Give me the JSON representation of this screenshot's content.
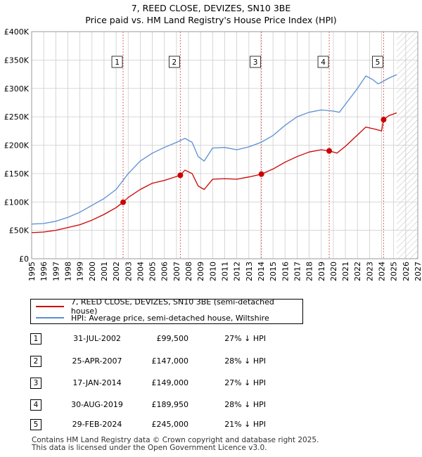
{
  "header": {
    "title_line1": "7, REED CLOSE, DEVIZES, SN10 3BE",
    "title_line2": "Price paid vs. HM Land Registry's House Price Index (HPI)"
  },
  "colors": {
    "property_line": "#cc0000",
    "hpi_line": "#5b8fd1",
    "grid": "#cccccc",
    "event_line": "#e06666",
    "hatch": "#bbbbbb"
  },
  "chart_data": {
    "type": "line",
    "title": "7, REED CLOSE, DEVIZES, SN10 3BE — Price paid vs. HM Land Registry's House Price Index (HPI)",
    "xlim": [
      1995,
      2027
    ],
    "ylim": [
      0,
      400000
    ],
    "x_ticks": [
      1995,
      1996,
      1997,
      1998,
      1999,
      2000,
      2001,
      2002,
      2003,
      2004,
      2005,
      2006,
      2007,
      2008,
      2009,
      2010,
      2011,
      2012,
      2013,
      2014,
      2015,
      2016,
      2017,
      2018,
      2019,
      2020,
      2021,
      2022,
      2023,
      2024,
      2025,
      2026,
      2027
    ],
    "y_ticks": [
      {
        "value": 0,
        "label": "£0"
      },
      {
        "value": 50000,
        "label": "£50K"
      },
      {
        "value": 100000,
        "label": "£100K"
      },
      {
        "value": 150000,
        "label": "£150K"
      },
      {
        "value": 200000,
        "label": "£200K"
      },
      {
        "value": 250000,
        "label": "£250K"
      },
      {
        "value": 300000,
        "label": "£300K"
      },
      {
        "value": 350000,
        "label": "£350K"
      },
      {
        "value": 400000,
        "label": "£400K"
      }
    ],
    "data_end": 2025.25,
    "series": [
      {
        "name": "7, REED CLOSE, DEVIZES, SN10 3BE (semi-detached house)",
        "x": [
          1995,
          1996,
          1997,
          1998,
          1999,
          2000,
          2001,
          2002,
          2002.58,
          2003,
          2004,
          2005,
          2006,
          2007.32,
          2007.7,
          2008.3,
          2008.8,
          2009.3,
          2010,
          2011,
          2012,
          2013,
          2014.04,
          2015,
          2016,
          2017,
          2018,
          2019,
          2019.66,
          2020.3,
          2021,
          2022,
          2022.7,
          2023.5,
          2024.0,
          2024.17,
          2024.6,
          2025.25
        ],
        "values": [
          46000,
          47000,
          50000,
          55000,
          60000,
          68000,
          78000,
          90000,
          99500,
          108000,
          122000,
          133000,
          138000,
          147000,
          156000,
          150000,
          128000,
          122000,
          140000,
          141000,
          140000,
          144000,
          149000,
          158000,
          170000,
          180000,
          188000,
          192000,
          189950,
          186000,
          198000,
          218000,
          232000,
          228000,
          225000,
          245000,
          252000,
          257000
        ]
      },
      {
        "name": "HPI: Average price, semi-detached house, Wiltshire",
        "x": [
          1995,
          1996,
          1997,
          1998,
          1999,
          2000,
          2001,
          2002,
          2003,
          2004,
          2005,
          2006,
          2007,
          2007.7,
          2008.3,
          2008.8,
          2009.3,
          2010,
          2011,
          2012,
          2013,
          2014,
          2015,
          2016,
          2017,
          2018,
          2019,
          2020,
          2020.5,
          2021,
          2022,
          2022.7,
          2023.3,
          2023.7,
          2024,
          2024.5,
          2025,
          2025.25
        ],
        "values": [
          61000,
          62000,
          66000,
          73000,
          82000,
          94000,
          106000,
          122000,
          150000,
          172000,
          186000,
          196000,
          205000,
          212000,
          205000,
          180000,
          172000,
          195000,
          196000,
          192000,
          197000,
          205000,
          217000,
          235000,
          250000,
          258000,
          262000,
          260000,
          258000,
          272000,
          300000,
          322000,
          315000,
          308000,
          311000,
          317000,
          322000,
          324000
        ]
      }
    ],
    "events": [
      {
        "label": "1",
        "x": 2002.58,
        "value": 99500
      },
      {
        "label": "2",
        "x": 2007.32,
        "value": 147000
      },
      {
        "label": "3",
        "x": 2014.04,
        "value": 149000
      },
      {
        "label": "4",
        "x": 2019.66,
        "value": 189950
      },
      {
        "label": "5",
        "x": 2024.17,
        "value": 245000
      }
    ]
  },
  "legend": {
    "property_label": "7, REED CLOSE, DEVIZES, SN10 3BE (semi-detached house)",
    "hpi_label": "HPI: Average price, semi-detached house, Wiltshire"
  },
  "transactions": [
    {
      "num": "1",
      "date": "31-JUL-2002",
      "price": "£99,500",
      "hpi": "27% ↓ HPI"
    },
    {
      "num": "2",
      "date": "25-APR-2007",
      "price": "£147,000",
      "hpi": "28% ↓ HPI"
    },
    {
      "num": "3",
      "date": "17-JAN-2014",
      "price": "£149,000",
      "hpi": "27% ↓ HPI"
    },
    {
      "num": "4",
      "date": "30-AUG-2019",
      "price": "£189,950",
      "hpi": "28% ↓ HPI"
    },
    {
      "num": "5",
      "date": "29-FEB-2024",
      "price": "£245,000",
      "hpi": "21% ↓ HPI"
    }
  ],
  "footer": {
    "line1": "Contains HM Land Registry data © Crown copyright and database right 2025.",
    "line2": "This data is licensed under the Open Government Licence v3.0."
  }
}
